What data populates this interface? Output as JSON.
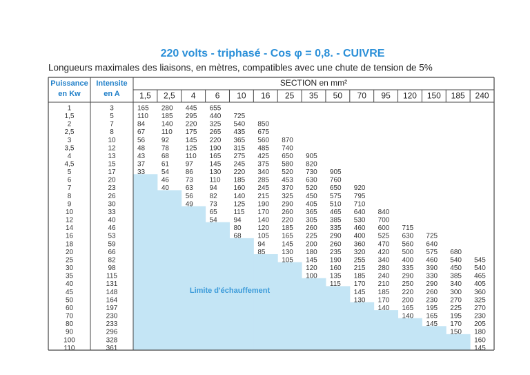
{
  "title": "220 volts - triphasé - Cos φ = 0,8. - CUIVRE",
  "subtitle": "Longueurs maximales des liaisons, en mètres, compatibles avec une chute de tension de 5%",
  "table": {
    "header": {
      "puissance": [
        "Puissance",
        "en Kw"
      ],
      "intensite": [
        "Intensite",
        "en A"
      ],
      "section": "SECTION en mm²"
    },
    "puissance": [
      "1",
      "1,5",
      "2",
      "2,5",
      "3",
      "3,5",
      "4",
      "4,5",
      "5",
      "6",
      "7",
      "8",
      "9",
      "10",
      "12",
      "14",
      "16",
      "18",
      "20",
      "25",
      "30",
      "35",
      "40",
      "45",
      "50",
      "60",
      "70",
      "80",
      "90",
      "100",
      "110"
    ],
    "intensite": [
      "3",
      "5",
      "7",
      "8",
      "10",
      "12",
      "13",
      "15",
      "17",
      "20",
      "23",
      "26",
      "30",
      "33",
      "40",
      "46",
      "53",
      "59",
      "66",
      "82",
      "98",
      "115",
      "131",
      "148",
      "164",
      "197",
      "230",
      "233",
      "296",
      "328",
      "361"
    ],
    "columns": [
      {
        "section": "1,5",
        "values": [
          165,
          110,
          84,
          67,
          56,
          48,
          43,
          37,
          33,
          null,
          null,
          null,
          null,
          null,
          null,
          null,
          null,
          null,
          null,
          null,
          null,
          null,
          null,
          null,
          null,
          null,
          null,
          null,
          null,
          null,
          null
        ]
      },
      {
        "section": "2,5",
        "values": [
          280,
          185,
          140,
          110,
          92,
          78,
          68,
          61,
          54,
          46,
          40,
          null,
          null,
          null,
          null,
          null,
          null,
          null,
          null,
          null,
          null,
          null,
          null,
          null,
          null,
          null,
          null,
          null,
          null,
          null,
          null
        ]
      },
      {
        "section": "4",
        "values": [
          445,
          295,
          220,
          175,
          145,
          125,
          110,
          97,
          86,
          73,
          63,
          56,
          49,
          null,
          null,
          null,
          null,
          null,
          null,
          null,
          null,
          null,
          null,
          null,
          null,
          null,
          null,
          null,
          null,
          null,
          null
        ]
      },
      {
        "section": "6",
        "values": [
          655,
          440,
          325,
          265,
          220,
          190,
          165,
          145,
          130,
          110,
          94,
          82,
          73,
          65,
          54,
          null,
          null,
          null,
          null,
          null,
          null,
          null,
          null,
          null,
          null,
          null,
          null,
          null,
          null,
          null,
          null
        ]
      },
      {
        "section": "10",
        "values": [
          null,
          725,
          540,
          435,
          365,
          315,
          275,
          245,
          220,
          185,
          160,
          140,
          125,
          115,
          94,
          80,
          68,
          null,
          null,
          null,
          null,
          null,
          null,
          null,
          null,
          null,
          null,
          null,
          null,
          null,
          null
        ]
      },
      {
        "section": "16",
        "values": [
          null,
          null,
          850,
          675,
          560,
          485,
          425,
          375,
          340,
          285,
          245,
          215,
          190,
          170,
          140,
          120,
          105,
          94,
          85,
          null,
          null,
          null,
          null,
          null,
          null,
          null,
          null,
          null,
          null,
          null,
          null
        ]
      },
      {
        "section": "25",
        "values": [
          null,
          null,
          null,
          null,
          870,
          740,
          650,
          580,
          520,
          453,
          370,
          325,
          290,
          260,
          220,
          185,
          165,
          145,
          130,
          105,
          null,
          null,
          null,
          null,
          null,
          null,
          null,
          null,
          null,
          null,
          null
        ]
      },
      {
        "section": "35",
        "values": [
          null,
          null,
          null,
          null,
          null,
          null,
          905,
          820,
          730,
          630,
          520,
          450,
          405,
          365,
          305,
          260,
          225,
          200,
          180,
          145,
          120,
          100,
          null,
          null,
          null,
          null,
          null,
          null,
          null,
          null,
          null
        ]
      },
      {
        "section": "50",
        "values": [
          null,
          null,
          null,
          null,
          null,
          null,
          null,
          null,
          905,
          760,
          650,
          575,
          510,
          465,
          385,
          335,
          290,
          260,
          235,
          190,
          160,
          135,
          115,
          null,
          null,
          null,
          null,
          null,
          null,
          null,
          null
        ]
      },
      {
        "section": "70",
        "values": [
          null,
          null,
          null,
          null,
          null,
          null,
          null,
          null,
          null,
          null,
          920,
          795,
          710,
          640,
          530,
          460,
          400,
          360,
          320,
          255,
          215,
          185,
          170,
          145,
          130,
          null,
          null,
          null,
          null,
          null,
          null
        ]
      },
      {
        "section": "95",
        "values": [
          null,
          null,
          null,
          null,
          null,
          null,
          null,
          null,
          null,
          null,
          null,
          null,
          null,
          840,
          700,
          600,
          525,
          470,
          420,
          340,
          280,
          240,
          210,
          185,
          170,
          140,
          null,
          null,
          null,
          null,
          null
        ]
      },
      {
        "section": "120",
        "values": [
          null,
          null,
          null,
          null,
          null,
          null,
          null,
          null,
          null,
          null,
          null,
          null,
          null,
          null,
          null,
          715,
          630,
          560,
          500,
          400,
          335,
          290,
          250,
          220,
          200,
          165,
          140,
          null,
          null,
          null,
          null
        ]
      },
      {
        "section": "150",
        "values": [
          null,
          null,
          null,
          null,
          null,
          null,
          null,
          null,
          null,
          null,
          null,
          null,
          null,
          null,
          null,
          null,
          725,
          640,
          575,
          460,
          390,
          330,
          290,
          260,
          230,
          195,
          165,
          145,
          null,
          null,
          null
        ]
      },
      {
        "section": "185",
        "values": [
          null,
          null,
          null,
          null,
          null,
          null,
          null,
          null,
          null,
          null,
          null,
          null,
          null,
          null,
          null,
          null,
          null,
          null,
          680,
          540,
          450,
          385,
          340,
          300,
          270,
          225,
          195,
          170,
          150,
          null,
          null
        ]
      },
      {
        "section": "240",
        "values": [
          null,
          null,
          null,
          null,
          null,
          null,
          null,
          null,
          null,
          null,
          null,
          null,
          null,
          null,
          null,
          null,
          null,
          null,
          null,
          545,
          540,
          465,
          405,
          360,
          325,
          270,
          230,
          205,
          180,
          160,
          145
        ]
      }
    ],
    "zone_label": "Limite d'échauffement"
  }
}
